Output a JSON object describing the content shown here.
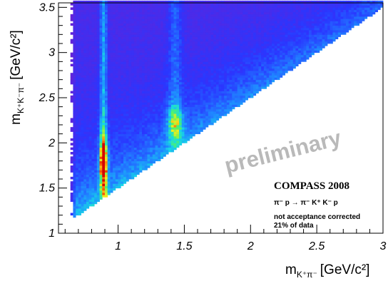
{
  "chart_data": {
    "type": "heatmap",
    "x_axis": {
      "label_main": "m",
      "label_sub": "K⁺π⁻",
      "label_unit": "[GeV/c²]",
      "range": [
        0.55,
        3.0
      ],
      "ticks": [
        1,
        1.5,
        2,
        2.5,
        3
      ],
      "tick_labels": [
        "1",
        "1.5",
        "2",
        "2.5",
        "3"
      ]
    },
    "y_axis": {
      "label_main": "m",
      "label_sub": "K⁺K⁻π⁻",
      "label_unit": "[GeV/c²]",
      "range": [
        1.0,
        3.55
      ],
      "ticks": [
        1,
        1.5,
        2,
        2.5,
        3,
        3.5
      ],
      "tick_labels": [
        "1",
        "1.5",
        "2",
        "2.5",
        "3",
        "3.5"
      ]
    },
    "kinematic_boundary": "m(K+K-pi-) >= m(K+pi-) + 0.5 GeV/c2; m(K+pi-) >= 0.63 GeV/c2",
    "structures": [
      {
        "x": 0.89,
        "y": 1.75,
        "intensity": "maximum"
      },
      {
        "x": 0.89,
        "y": 2.0,
        "intensity": "high"
      },
      {
        "x": 1.43,
        "y": 2.22,
        "intensity": "medium"
      }
    ],
    "color_scale": [
      "#ffffff",
      "#6e1fd1",
      "#2a36ff",
      "#1f8cff",
      "#17d7e6",
      "#4cf36a",
      "#f2ee1a",
      "#ff7b0a",
      "#d40000"
    ],
    "annotations": {
      "watermark": "preliminary",
      "collaboration": "COMPASS 2008",
      "reaction": "π⁻ p → π⁻ K⁺ K⁻ p",
      "note1": "not acceptance corrected",
      "note2": "21% of data"
    }
  }
}
